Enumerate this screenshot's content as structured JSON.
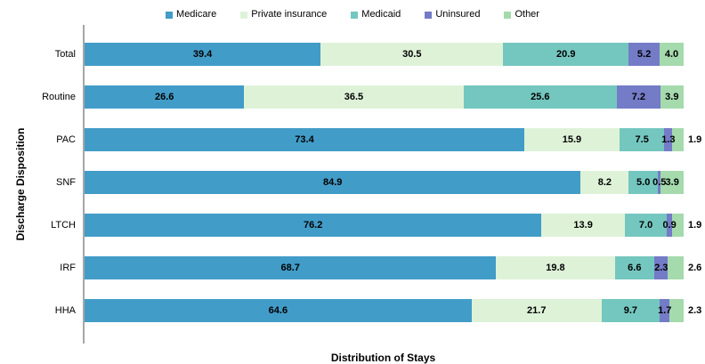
{
  "chart_data": {
    "type": "bar",
    "orientation": "horizontal-stacked-100",
    "title": "",
    "xlabel": "Distribution of Stays",
    "ylabel": "Discharge Disposition",
    "legend_position": "top",
    "grid": false,
    "axis_line_color": "#a6a6a6",
    "value_decimals": 1,
    "outside_label_threshold": 3,
    "categories": [
      "Total",
      "Routine",
      "PAC",
      "SNF",
      "LTCH",
      "IRF",
      "HHA"
    ],
    "series": [
      {
        "name": "Medicare",
        "color": "#429cc8",
        "values": [
          39.4,
          26.6,
          73.4,
          84.9,
          76.2,
          68.7,
          64.6
        ]
      },
      {
        "name": "Private insurance",
        "color": "#def2d8",
        "values": [
          30.5,
          36.5,
          15.9,
          8.2,
          13.9,
          19.8,
          21.7
        ]
      },
      {
        "name": "Medicaid",
        "color": "#74c7bf",
        "values": [
          20.9,
          25.6,
          7.5,
          5.0,
          7.0,
          6.6,
          9.7
        ]
      },
      {
        "name": "Uninsured",
        "color": "#747bc7",
        "values": [
          5.2,
          7.2,
          1.3,
          0.5,
          0.9,
          2.3,
          1.7
        ]
      },
      {
        "name": "Other",
        "color": "#a5daad",
        "values": [
          4.0,
          3.9,
          1.9,
          3.9,
          1.9,
          2.6,
          2.3
        ]
      }
    ]
  }
}
